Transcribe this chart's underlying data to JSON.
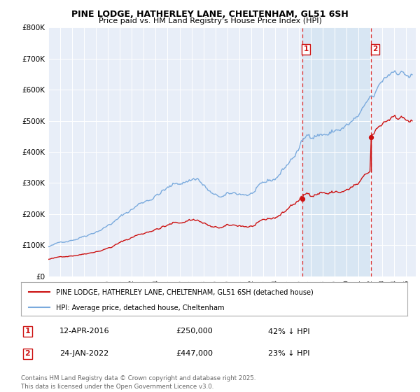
{
  "title_line1": "PINE LODGE, HATHERLEY LANE, CHELTENHAM, GL51 6SH",
  "title_line2": "Price paid vs. HM Land Registry's House Price Index (HPI)",
  "background_color": "#ffffff",
  "plot_bg_color": "#e8eef8",
  "shade_between_color": "#dce8f5",
  "hpi_color": "#7aaadd",
  "price_color": "#cc1111",
  "sale1_date_num": 2016.28,
  "sale2_date_num": 2022.07,
  "sale1_price": 250000,
  "sale2_price": 447000,
  "legend_label1": "PINE LODGE, HATHERLEY LANE, CHELTENHAM, GL51 6SH (detached house)",
  "legend_label2": "HPI: Average price, detached house, Cheltenham",
  "table_row1": [
    "1",
    "12-APR-2016",
    "£250,000",
    "42% ↓ HPI"
  ],
  "table_row2": [
    "2",
    "24-JAN-2022",
    "£447,000",
    "23% ↓ HPI"
  ],
  "footer": "Contains HM Land Registry data © Crown copyright and database right 2025.\nThis data is licensed under the Open Government Licence v3.0.",
  "ylim": [
    0,
    800000
  ],
  "yticks": [
    0,
    100000,
    200000,
    300000,
    400000,
    500000,
    600000,
    700000,
    800000
  ],
  "xlim_start": 1995.0,
  "xlim_end": 2025.8
}
